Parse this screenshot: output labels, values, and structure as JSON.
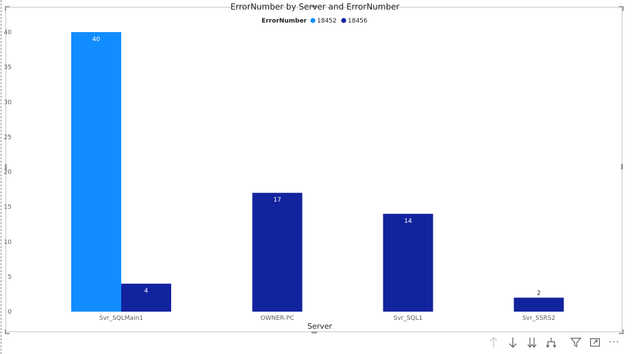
{
  "chart_data": {
    "type": "bar",
    "title": "ErrorNumber by Server and ErrorNumber",
    "legend": {
      "title": "ErrorNumber",
      "placement": "top-center"
    },
    "xlabel": "Server",
    "ylabel": "",
    "ylim": [
      0,
      40
    ],
    "yticks": [
      "0",
      "5",
      "10",
      "15",
      "20",
      "25",
      "30",
      "35",
      "40"
    ],
    "grid": false,
    "categories": [
      "Svr_SQLMain1",
      "OWNER-PC",
      "Svr_SQL1",
      "Svr_SSRS2"
    ],
    "series": [
      {
        "name": "18452",
        "color": "#118DFF",
        "values": [
          40,
          null,
          null,
          null
        ],
        "labels": [
          "40",
          "",
          "",
          ""
        ]
      },
      {
        "name": "18456",
        "color": "#12239E",
        "values": [
          4,
          17,
          14,
          2
        ],
        "labels": [
          "4",
          "17",
          "14",
          "2"
        ]
      }
    ]
  },
  "toolbar": {
    "icons": [
      "arrow-up-icon",
      "arrow-down-icon",
      "double-arrow-down-icon",
      "expand-hierarchy-icon",
      "filter-icon",
      "focus-mode-icon",
      "more-options-icon"
    ],
    "more_label": "···"
  }
}
